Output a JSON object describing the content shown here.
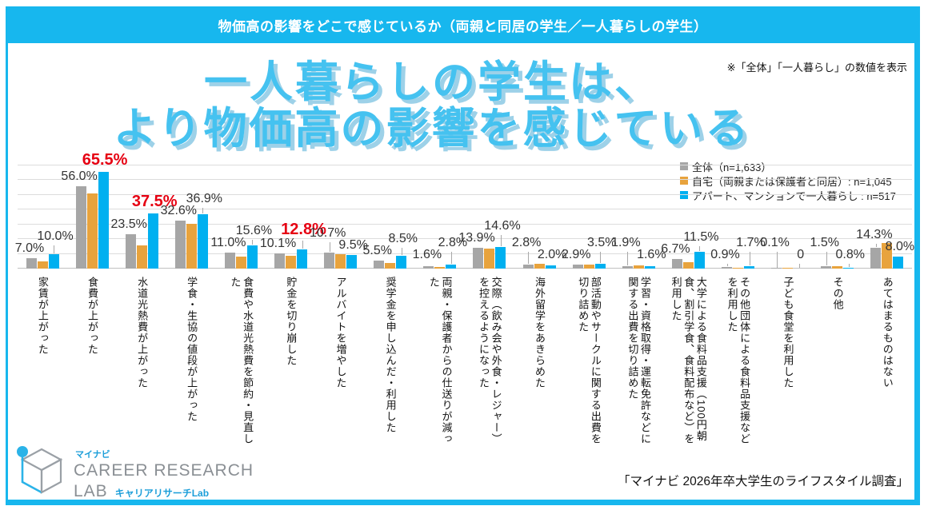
{
  "banner": {
    "title": "物価高の影響をどこで感じているか（両親と同居の学生／一人暮らしの学生）"
  },
  "note": "※「全体」「一人暮らし」の数値を表示",
  "headline": {
    "line1": "一人暮らしの学生は、",
    "line2": "より物価高の影響を感じている"
  },
  "colors": {
    "accent": "#17b7ee",
    "bar_total": "#a6a6a6",
    "bar_home": "#e8a33d",
    "bar_solo": "#00b0f0",
    "highlight_red": "#e60012"
  },
  "chart_data": {
    "type": "bar",
    "title": "物価高の影響をどこで感じているか（両親と同居の学生／一人暮らしの学生）",
    "ylabel": "%",
    "ylim": [
      0,
      70
    ],
    "grid_step": 10,
    "grid": true,
    "legend_position": "top-right",
    "series": [
      {
        "key": "total",
        "name": "全体（n=1,633）",
        "color": "#a6a6a6",
        "labeled": true
      },
      {
        "key": "home",
        "name": "自宅（両親または保護者と同居）: n=1,045",
        "color": "#e8a33d",
        "labeled": false
      },
      {
        "key": "solo",
        "name": "アパート、マンションで一人暮らし : n=517",
        "color": "#00b0f0",
        "labeled": true
      }
    ],
    "categories": [
      {
        "label": "家賃が上がった",
        "total": 7.0,
        "home": 5.0,
        "solo": 10.0,
        "total_label": "7.0%",
        "solo_label": "10.0%",
        "solo_red": false
      },
      {
        "label": "食費が上がった",
        "total": 56.0,
        "home": 51.0,
        "solo": 65.5,
        "total_label": "56.0%",
        "solo_label": "65.5%",
        "solo_red": true
      },
      {
        "label": "水道光熱費が上がった",
        "total": 23.5,
        "home": 15.5,
        "solo": 37.5,
        "total_label": "23.5%",
        "solo_label": "37.5%",
        "solo_red": true
      },
      {
        "label": "学食・生協の値段が上がった",
        "total": 32.6,
        "home": 30.5,
        "solo": 36.9,
        "total_label": "32.6%",
        "solo_label": "36.9%",
        "solo_red": false
      },
      {
        "label": "食費や水道光熱費を節約・見直した",
        "total": 11.0,
        "home": 8.0,
        "solo": 15.6,
        "total_label": "11.0%",
        "solo_label": "15.6%",
        "solo_red": false
      },
      {
        "label": "貯金を切り崩した",
        "total": 10.1,
        "home": 8.7,
        "solo": 12.8,
        "total_label": "10.1%",
        "solo_label": "12.8%",
        "solo_red": true
      },
      {
        "label": "アルバイトを増やした",
        "total": 10.7,
        "home": 10.0,
        "solo": 9.5,
        "total_label": "10.7%",
        "solo_label": "9.5%",
        "solo_red": false
      },
      {
        "label": "奨学金を申し込んだ・利用した",
        "total": 5.5,
        "home": 4.0,
        "solo": 8.5,
        "total_label": "5.5%",
        "solo_label": "8.5%",
        "solo_red": false
      },
      {
        "label": "両親・保護者からの仕送りが減った",
        "total": 1.6,
        "home": 1.0,
        "solo": 2.8,
        "total_label": "1.6%",
        "solo_label": "2.8%",
        "solo_red": false
      },
      {
        "label": "交際（飲み会や外食・レジャー）を控えるようになった",
        "total": 13.9,
        "home": 13.6,
        "solo": 14.6,
        "total_label": "13.9%",
        "solo_label": "14.6%",
        "solo_red": false
      },
      {
        "label": "海外留学をあきらめた",
        "total": 2.8,
        "home": 3.2,
        "solo": 2.0,
        "total_label": "2.8%",
        "solo_label": "2.0%",
        "solo_red": false
      },
      {
        "label": "部活動やサークルに関する出費を切り詰めた",
        "total": 2.9,
        "home": 2.6,
        "solo": 3.5,
        "total_label": "2.9%",
        "solo_label": "3.5%",
        "solo_red": false
      },
      {
        "label": "学習・資格取得・運転免許などに関する出費を切り詰めた",
        "total": 1.9,
        "home": 2.0,
        "solo": 1.6,
        "total_label": "1.9%",
        "solo_label": "1.6%",
        "solo_red": false
      },
      {
        "label": "大学による食料品支援（100円朝食、割引学食、食料配布など）を利用した",
        "total": 6.7,
        "home": 4.5,
        "solo": 11.5,
        "total_label": "6.7%",
        "solo_label": "11.5%",
        "solo_red": false
      },
      {
        "label": "その他団体による食料品支援などを利用した",
        "total": 0.9,
        "home": 0.5,
        "solo": 1.7,
        "total_label": "0.9%",
        "solo_label": "1.7%",
        "solo_red": false
      },
      {
        "label": "子ども食堂を利用した",
        "total": 0.1,
        "home": 0.2,
        "solo": 0.0,
        "total_label": "0.1%",
        "solo_label": "0",
        "solo_red": false
      },
      {
        "label": "その他",
        "total": 1.5,
        "home": 1.8,
        "solo": 0.8,
        "total_label": "1.5%",
        "solo_label": "0.8%",
        "solo_red": false
      },
      {
        "label": "あてはまるものはない",
        "total": 14.3,
        "home": 17.2,
        "solo": 8.0,
        "total_label": "14.3%",
        "solo_label": "8.0%",
        "solo_red": false
      }
    ]
  },
  "logo": {
    "brand_small": "マイナビ",
    "brand_main": "CAREER RESEARCH",
    "brand_sub": "LAB",
    "brand_sub_jp": "キャリアリサーチLab"
  },
  "source": "「マイナビ 2026年卒大学生のライフスタイル調査」"
}
